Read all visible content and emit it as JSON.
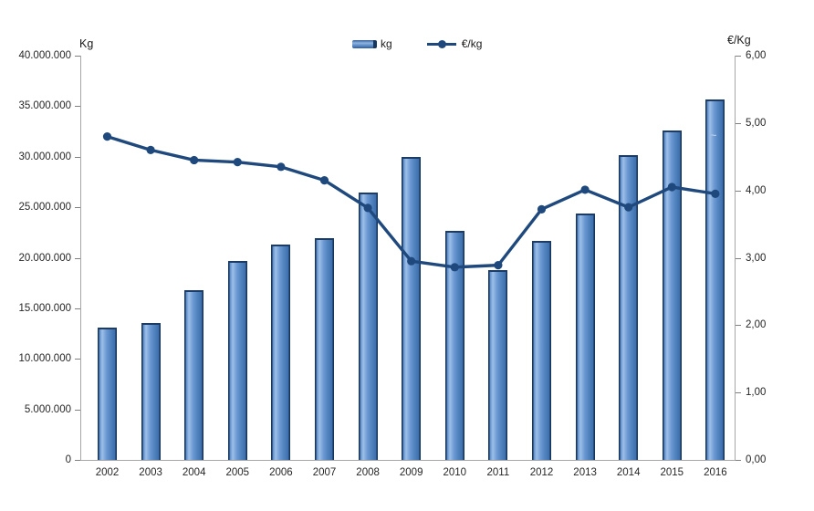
{
  "chart_data": {
    "type": "combo",
    "title": "",
    "categories": [
      "2002",
      "2003",
      "2004",
      "2005",
      "2006",
      "2007",
      "2008",
      "2009",
      "2010",
      "2011",
      "2012",
      "2013",
      "2014",
      "2015",
      "2016"
    ],
    "series": [
      {
        "name": "kg",
        "type": "bar",
        "axis": "left",
        "values": [
          13100000,
          13500000,
          16800000,
          19650000,
          21300000,
          21950000,
          26450000,
          30000000,
          22650000,
          18800000,
          21700000,
          24350000,
          30200000,
          32600000,
          35650000
        ]
      },
      {
        "name": "€/kg",
        "type": "line",
        "axis": "right",
        "values": [
          4.8,
          4.6,
          4.45,
          4.42,
          4.35,
          4.15,
          3.74,
          2.95,
          2.86,
          2.89,
          3.72,
          4.01,
          3.75,
          4.05,
          3.95
        ]
      }
    ],
    "left_axis": {
      "label": "Kg",
      "min": 0,
      "max": 40000000,
      "step": 5000000,
      "tick_labels": [
        "40.000.000",
        "35.000.000",
        "30.000.000",
        "25.000.000",
        "20.000.000",
        "15.000.000",
        "10.000.000",
        "5.000.000",
        "0"
      ]
    },
    "right_axis": {
      "label": "€/Kg",
      "min": 0,
      "max": 6,
      "step": 1,
      "tick_labels": [
        "6,00",
        "5,00",
        "4,00",
        "3,00",
        "2,00",
        "1,00",
        "0,00"
      ]
    },
    "legend": {
      "position": "top-center",
      "items": [
        {
          "label": "kg",
          "swatch": "bar"
        },
        {
          "label": "€/kg",
          "swatch": "line-dot"
        }
      ]
    },
    "grid": false,
    "annotations": {
      "bar_2016_mark": "~"
    }
  },
  "colors": {
    "bar_fill": "#4f81bd",
    "bar_highlight": "#9dc0e8",
    "bar_edge": "#17375e",
    "line": "#1f497d",
    "axis_line": "#a6a6a6",
    "text": "#262626",
    "background": "#ffffff",
    "bar_2016_mark": "#b8cce4"
  }
}
